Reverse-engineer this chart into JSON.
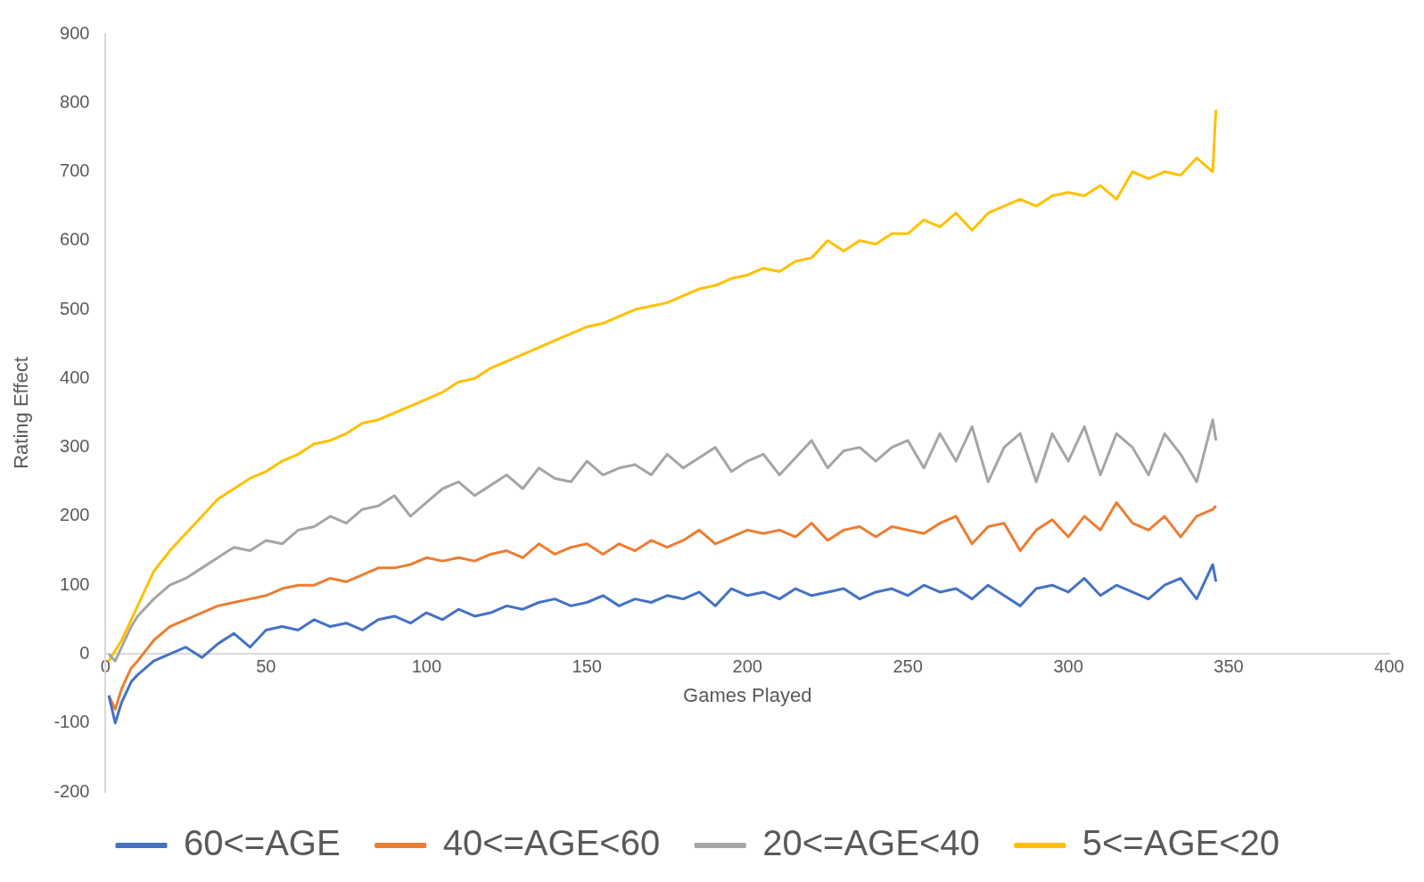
{
  "chart_data": {
    "type": "line",
    "xlabel": "Games Played",
    "ylabel": "Rating Effect",
    "xlim": [
      0,
      400
    ],
    "xticks": [
      0,
      50,
      100,
      150,
      200,
      250,
      300,
      350,
      400
    ],
    "ylim": [
      -200,
      900
    ],
    "yticks": [
      -200,
      -100,
      0,
      100,
      200,
      300,
      400,
      500,
      600,
      700,
      800,
      900
    ],
    "grid": false,
    "legend": "bottom",
    "marker": "none",
    "line_style": "solid",
    "x": [
      1,
      3,
      5,
      8,
      10,
      15,
      20,
      25,
      30,
      35,
      40,
      45,
      50,
      55,
      60,
      65,
      70,
      75,
      80,
      85,
      90,
      95,
      100,
      105,
      110,
      115,
      120,
      125,
      130,
      135,
      140,
      145,
      150,
      155,
      160,
      165,
      170,
      175,
      180,
      185,
      190,
      195,
      200,
      205,
      210,
      215,
      220,
      225,
      230,
      235,
      240,
      245,
      250,
      255,
      260,
      265,
      270,
      275,
      280,
      285,
      290,
      295,
      300,
      305,
      310,
      315,
      320,
      325,
      330,
      335,
      340,
      345,
      346
    ],
    "series": [
      {
        "name": "60<=AGE",
        "color": "#4472c4",
        "values": [
          -60,
          -100,
          -70,
          -40,
          -30,
          -10,
          0,
          10,
          -5,
          15,
          30,
          10,
          35,
          40,
          35,
          50,
          40,
          45,
          35,
          50,
          55,
          45,
          60,
          50,
          65,
          55,
          60,
          70,
          65,
          75,
          80,
          70,
          75,
          85,
          70,
          80,
          75,
          85,
          80,
          90,
          70,
          95,
          85,
          90,
          80,
          95,
          85,
          90,
          95,
          80,
          90,
          95,
          85,
          100,
          90,
          95,
          80,
          100,
          85,
          70,
          95,
          100,
          90,
          110,
          85,
          100,
          90,
          80,
          100,
          110,
          80,
          130,
          105
        ]
      },
      {
        "name": "40<=AGE<60",
        "color": "#ed7d31",
        "values": [
          -60,
          -80,
          -50,
          -20,
          -10,
          20,
          40,
          50,
          60,
          70,
          75,
          80,
          85,
          95,
          100,
          100,
          110,
          105,
          115,
          125,
          125,
          130,
          140,
          135,
          140,
          135,
          145,
          150,
          140,
          160,
          145,
          155,
          160,
          145,
          160,
          150,
          165,
          155,
          165,
          180,
          160,
          170,
          180,
          175,
          180,
          170,
          190,
          165,
          180,
          185,
          170,
          185,
          180,
          175,
          190,
          200,
          160,
          185,
          190,
          150,
          180,
          195,
          170,
          200,
          180,
          220,
          190,
          180,
          200,
          170,
          200,
          210,
          215
        ]
      },
      {
        "name": "20<=AGE<40",
        "color": "#a5a5a5",
        "values": [
          0,
          -10,
          10,
          40,
          55,
          80,
          100,
          110,
          125,
          140,
          155,
          150,
          165,
          160,
          180,
          185,
          200,
          190,
          210,
          215,
          230,
          200,
          220,
          240,
          250,
          230,
          245,
          260,
          240,
          270,
          255,
          250,
          280,
          260,
          270,
          275,
          260,
          290,
          270,
          285,
          300,
          265,
          280,
          290,
          260,
          285,
          310,
          270,
          295,
          300,
          280,
          300,
          310,
          270,
          320,
          280,
          330,
          250,
          300,
          320,
          250,
          320,
          280,
          330,
          260,
          320,
          300,
          260,
          320,
          290,
          250,
          340,
          310
        ]
      },
      {
        "name": "5<=AGE<20",
        "color": "#ffc000",
        "values": [
          -10,
          5,
          20,
          50,
          70,
          120,
          150,
          175,
          200,
          225,
          240,
          255,
          265,
          280,
          290,
          305,
          310,
          320,
          335,
          340,
          350,
          360,
          370,
          380,
          395,
          400,
          415,
          425,
          435,
          445,
          455,
          465,
          475,
          480,
          490,
          500,
          505,
          510,
          520,
          530,
          535,
          545,
          550,
          560,
          555,
          570,
          575,
          600,
          585,
          600,
          595,
          610,
          610,
          630,
          620,
          640,
          615,
          640,
          650,
          660,
          650,
          665,
          670,
          665,
          680,
          660,
          700,
          690,
          700,
          695,
          720,
          700,
          790
        ]
      }
    ]
  }
}
